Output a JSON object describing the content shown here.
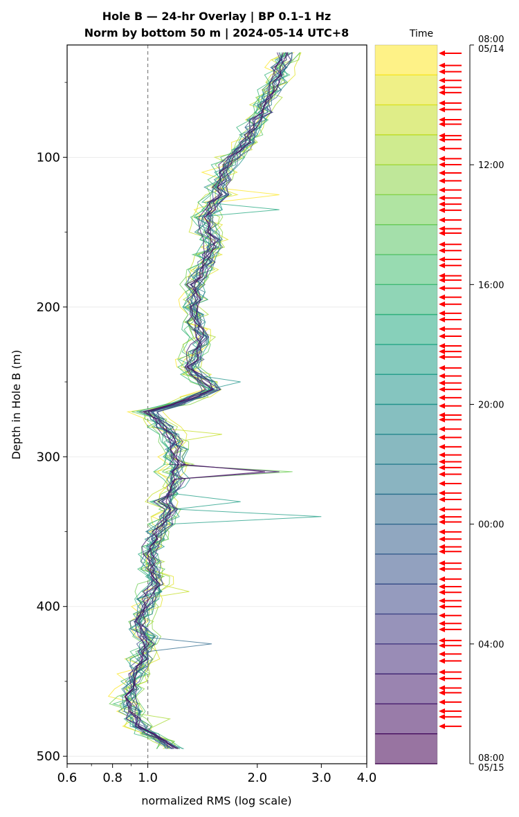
{
  "chart_data": {
    "type": "line",
    "title": [
      "Hole B — 24-hr Overlay  |  BP 0.1–1 Hz",
      "Norm by bottom 50 m  |  2024-05-14 UTC+8"
    ],
    "xlabel": "normalized RMS  (log scale)",
    "ylabel": "Depth in Hole B (m)",
    "xscale": "log",
    "xlim": [
      0.6,
      4.0
    ],
    "ylim": [
      505,
      25
    ],
    "xticks": [
      0.6,
      0.8,
      1.0,
      2.0,
      3.0,
      4.0
    ],
    "xtick_labels": [
      "0.6",
      "0.8",
      "1.0",
      "2.0",
      "3.0",
      "4.0"
    ],
    "yticks": [
      100,
      200,
      300,
      400,
      500
    ],
    "ytick_labels": [
      "100",
      "200",
      "300",
      "400",
      "500"
    ],
    "reference_line": {
      "x": 1.0,
      "style": "dashed",
      "color": "#808080"
    },
    "grid": "horizontal",
    "colormap": "viridis",
    "color_order": "later hours darker",
    "depth": [
      30,
      35,
      40,
      45,
      50,
      55,
      60,
      65,
      70,
      75,
      80,
      85,
      90,
      95,
      100,
      105,
      110,
      115,
      120,
      125,
      130,
      135,
      140,
      145,
      150,
      155,
      160,
      165,
      170,
      175,
      180,
      185,
      190,
      195,
      200,
      205,
      210,
      215,
      220,
      225,
      230,
      235,
      240,
      245,
      250,
      255,
      260,
      265,
      270,
      275,
      280,
      285,
      290,
      295,
      300,
      305,
      310,
      315,
      320,
      325,
      330,
      335,
      340,
      345,
      350,
      355,
      360,
      365,
      370,
      375,
      380,
      385,
      390,
      395,
      400,
      405,
      410,
      415,
      420,
      425,
      430,
      435,
      440,
      445,
      450,
      455,
      460,
      465,
      470,
      475,
      480,
      485,
      490,
      495
    ],
    "median_profile": [
      2.4,
      2.35,
      2.3,
      2.3,
      2.25,
      2.2,
      2.15,
      2.1,
      2.1,
      2.0,
      1.95,
      1.9,
      1.85,
      1.8,
      1.7,
      1.65,
      1.6,
      1.6,
      1.55,
      1.6,
      1.5,
      1.5,
      1.45,
      1.45,
      1.45,
      1.5,
      1.5,
      1.45,
      1.45,
      1.4,
      1.38,
      1.35,
      1.35,
      1.35,
      1.32,
      1.35,
      1.35,
      1.38,
      1.4,
      1.38,
      1.35,
      1.35,
      1.3,
      1.35,
      1.45,
      1.5,
      1.35,
      1.2,
      1.0,
      1.05,
      1.1,
      1.15,
      1.18,
      1.2,
      1.18,
      1.2,
      1.15,
      1.2,
      1.18,
      1.15,
      1.1,
      1.15,
      1.12,
      1.1,
      1.05,
      1.05,
      1.02,
      1.0,
      1.02,
      1.02,
      1.05,
      1.05,
      1.02,
      1.0,
      0.98,
      0.97,
      0.95,
      0.96,
      0.98,
      1.0,
      0.98,
      0.97,
      0.95,
      0.93,
      0.92,
      0.9,
      0.88,
      0.88,
      0.9,
      0.92,
      0.95,
      1.02,
      1.1,
      1.18
    ],
    "series": [
      {
        "hour": 0,
        "spikes": [
          [
            125,
            2.3
          ]
        ]
      },
      {
        "hour": 1,
        "spikes": []
      },
      {
        "hour": 2,
        "spikes": [
          [
            285,
            1.6
          ],
          [
            390,
            1.3
          ]
        ]
      },
      {
        "hour": 3,
        "spikes": [
          [
            475,
            1.15
          ]
        ]
      },
      {
        "hour": 4,
        "spikes": []
      },
      {
        "hour": 5,
        "spikes": [
          [
            308,
            2.5
          ]
        ]
      },
      {
        "hour": 6,
        "spikes": []
      },
      {
        "hour": 7,
        "spikes": []
      },
      {
        "hour": 8,
        "spikes": []
      },
      {
        "hour": 9,
        "spikes": [
          [
            135,
            2.3
          ]
        ]
      },
      {
        "hour": 10,
        "spikes": [
          [
            340,
            3.0
          ],
          [
            330,
            1.8
          ]
        ]
      },
      {
        "hour": 11,
        "spikes": [
          [
            250,
            1.8
          ]
        ]
      },
      {
        "hour": 12,
        "spikes": []
      },
      {
        "hour": 13,
        "spikes": []
      },
      {
        "hour": 14,
        "spikes": []
      },
      {
        "hour": 15,
        "spikes": [
          [
            425,
            1.5
          ]
        ]
      },
      {
        "hour": 16,
        "spikes": []
      },
      {
        "hour": 17,
        "spikes": []
      },
      {
        "hour": 18,
        "spikes": []
      },
      {
        "hour": 19,
        "spikes": []
      },
      {
        "hour": 20,
        "spikes": []
      },
      {
        "hour": 21,
        "spikes": [
          [
            308,
            2.3
          ]
        ]
      },
      {
        "hour": 22,
        "spikes": [
          [
            308,
            2.1
          ]
        ]
      },
      {
        "hour": 23,
        "spikes": []
      }
    ],
    "colorbar": {
      "label": "Time",
      "ticks": [
        "08:00\n05/14",
        "12:00",
        "16:00",
        "20:00",
        "00:00",
        "04:00",
        "08:00\n05/15"
      ],
      "segments": 24
    },
    "event_markers": {
      "color": "#ff0000",
      "count": 87
    }
  }
}
